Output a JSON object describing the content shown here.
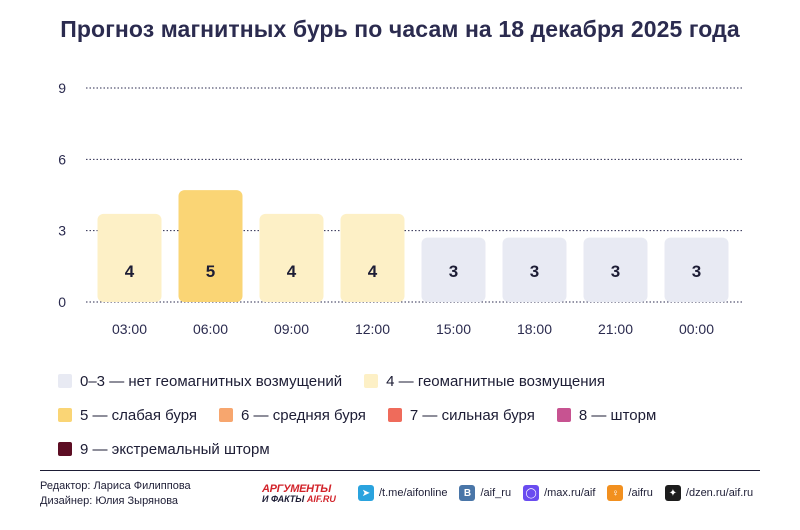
{
  "title": "Прогноз магнитных бурь по часам на 18 декабря 2025 года",
  "chart_data": {
    "type": "bar",
    "categories": [
      "03:00",
      "06:00",
      "09:00",
      "12:00",
      "15:00",
      "18:00",
      "21:00",
      "00:00"
    ],
    "values": [
      4,
      5,
      4,
      4,
      3,
      3,
      3,
      3
    ],
    "yticks": [
      0,
      3,
      6,
      9
    ],
    "ylim": [
      0,
      9
    ],
    "grid": true,
    "gridStyle": "dotted",
    "colorByLevel": {
      "0-3": "#e8eaf3",
      "4": "#fdf0c6",
      "5": "#fad575",
      "6": "#f7a66e",
      "7": "#ef6b5b",
      "8": "#c75391",
      "9": "#5c0d23"
    }
  },
  "legend": [
    [
      {
        "label": "0–3 — нет геомагнитных возмущений",
        "color": "#e8eaf3"
      },
      {
        "label": "4 — геомагнитные возмущения",
        "color": "#fdf0c6"
      }
    ],
    [
      {
        "label": "5 — слабая буря",
        "color": "#fad575"
      },
      {
        "label": "6 — средняя буря",
        "color": "#f7a66e"
      },
      {
        "label": "7 — сильная буря",
        "color": "#ef6b5b"
      },
      {
        "label": "8 — шторм",
        "color": "#c75391"
      }
    ],
    [
      {
        "label": "9 — экстремальный шторм",
        "color": "#5c0d23"
      }
    ]
  ],
  "footer": {
    "editor": "Редактор: Лариса Филиппова",
    "designer": "Дизайнер: Юлия Зырянова",
    "logo_main": "АРГУМЕНТЫ",
    "logo_sub_a": "И ФАКТЫ",
    "logo_sub_b": "AIF.RU",
    "socials": [
      {
        "label": "/t.me/aifonline",
        "icon": "telegram-icon",
        "glyph": "➤",
        "color": "#2aa3de"
      },
      {
        "label": "/aif_ru",
        "icon": "vk-icon",
        "glyph": "B",
        "color": "#4a76a8"
      },
      {
        "label": "/max.ru/aif",
        "icon": "max-icon",
        "glyph": "◯",
        "color": "#6a4cf0"
      },
      {
        "label": "/aifru",
        "icon": "ok-icon",
        "glyph": "♀",
        "color": "#f2901f"
      },
      {
        "label": "/dzen.ru/aif.ru",
        "icon": "dzen-icon",
        "glyph": "✦",
        "color": "#1d1d1d"
      }
    ]
  }
}
